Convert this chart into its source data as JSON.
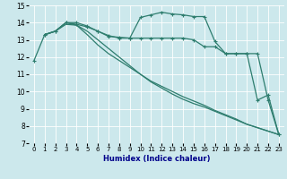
{
  "xlabel": "Humidex (Indice chaleur)",
  "xlim": [
    -0.5,
    23.5
  ],
  "ylim": [
    7,
    15
  ],
  "yticks": [
    7,
    8,
    9,
    10,
    11,
    12,
    13,
    14,
    15
  ],
  "xticks": [
    0,
    1,
    2,
    3,
    4,
    5,
    6,
    7,
    8,
    9,
    10,
    11,
    12,
    13,
    14,
    15,
    16,
    17,
    18,
    19,
    20,
    21,
    22,
    23
  ],
  "bg_color": "#cce8ec",
  "line_color": "#2e7d6e",
  "grid_color": "#ffffff",
  "line1_x": [
    0,
    1,
    2,
    3,
    4,
    5,
    6,
    7,
    8,
    9,
    10,
    11,
    12,
    13,
    14,
    15,
    16,
    17,
    18,
    19,
    20,
    21,
    22,
    23
  ],
  "line1_y": [
    11.8,
    13.3,
    13.5,
    14.0,
    14.0,
    13.8,
    13.5,
    13.2,
    13.15,
    13.1,
    14.3,
    14.45,
    14.6,
    14.5,
    14.45,
    14.35,
    14.35,
    12.9,
    12.2,
    12.2,
    12.2,
    9.5,
    9.8,
    7.5
  ],
  "line2_x": [
    1,
    2,
    3,
    4,
    5,
    6,
    7,
    8,
    9,
    10,
    11,
    12,
    13,
    14,
    15,
    16,
    17,
    18,
    19,
    20,
    21,
    22,
    23
  ],
  "line2_y": [
    13.3,
    13.5,
    14.0,
    13.9,
    13.75,
    13.5,
    13.25,
    13.1,
    13.1,
    13.1,
    13.1,
    13.1,
    13.1,
    13.1,
    13.0,
    12.6,
    12.6,
    12.2,
    12.2,
    12.2,
    12.2,
    9.5,
    7.5
  ],
  "line3_x": [
    1,
    2,
    3,
    4,
    5,
    6,
    7,
    8,
    9,
    10,
    11,
    12,
    13,
    14,
    15,
    16,
    17,
    18,
    19,
    20,
    21,
    22,
    23
  ],
  "line3_y": [
    13.3,
    13.5,
    14.0,
    13.85,
    13.5,
    13.0,
    12.5,
    12.0,
    11.5,
    11.0,
    10.6,
    10.3,
    10.0,
    9.7,
    9.45,
    9.2,
    8.9,
    8.65,
    8.4,
    8.1,
    7.9,
    7.7,
    7.5
  ],
  "line4_x": [
    1,
    2,
    3,
    4,
    5,
    6,
    7,
    8,
    9,
    10,
    11,
    12,
    13,
    14,
    15,
    16,
    17,
    18,
    19,
    20,
    21,
    22,
    23
  ],
  "line4_y": [
    13.3,
    13.5,
    13.9,
    13.85,
    13.3,
    12.7,
    12.2,
    11.8,
    11.4,
    11.0,
    10.55,
    10.2,
    9.85,
    9.55,
    9.3,
    9.1,
    8.85,
    8.6,
    8.35,
    8.1,
    7.9,
    7.7,
    7.5
  ]
}
